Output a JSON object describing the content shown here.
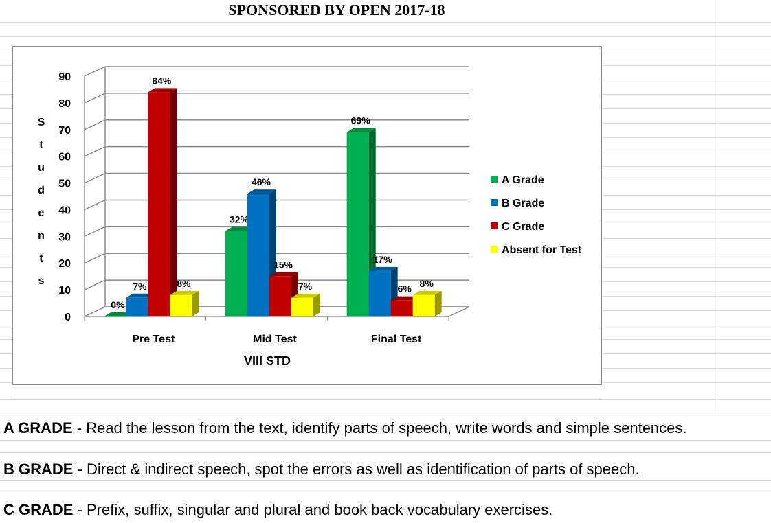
{
  "title": "SPONSORED BY OPEN 2017-18",
  "chart_data": {
    "type": "bar",
    "categories": [
      "Pre Test",
      "Mid Test",
      "Final Test"
    ],
    "xlabel": "VIII STD",
    "ylabel": "Students",
    "ylim": [
      0,
      90
    ],
    "yticks": [
      0,
      10,
      20,
      30,
      40,
      50,
      60,
      70,
      80,
      90
    ],
    "grid": true,
    "legend_position": "right",
    "series": [
      {
        "name": "A Grade",
        "color": "#00b050",
        "values": [
          0,
          32,
          69
        ],
        "labels": [
          "0%",
          "32%",
          "69%"
        ]
      },
      {
        "name": "B Grade",
        "color": "#0070c0",
        "values": [
          7,
          46,
          17
        ],
        "labels": [
          "7%",
          "46%",
          "17%"
        ]
      },
      {
        "name": "C Grade",
        "color": "#c00000",
        "values": [
          84,
          15,
          6
        ],
        "labels": [
          "84%",
          "15%",
          "6%"
        ]
      },
      {
        "name": "Absent for Test",
        "color": "#ffff00",
        "values": [
          8,
          7,
          8
        ],
        "labels": [
          "8%",
          "7%",
          "8%"
        ]
      }
    ]
  },
  "notes": [
    {
      "label": "A GRADE",
      "text": " - Read the lesson from the text,  identify parts of speech, write words and simple sentences."
    },
    {
      "label": "B GRADE",
      "text": " -  Direct & indirect speech, spot the errors as well as identification of parts of speech."
    },
    {
      "label": "C GRADE",
      "text": " - Prefix, suffix, singular and plural and book back vocabulary exercises."
    }
  ]
}
